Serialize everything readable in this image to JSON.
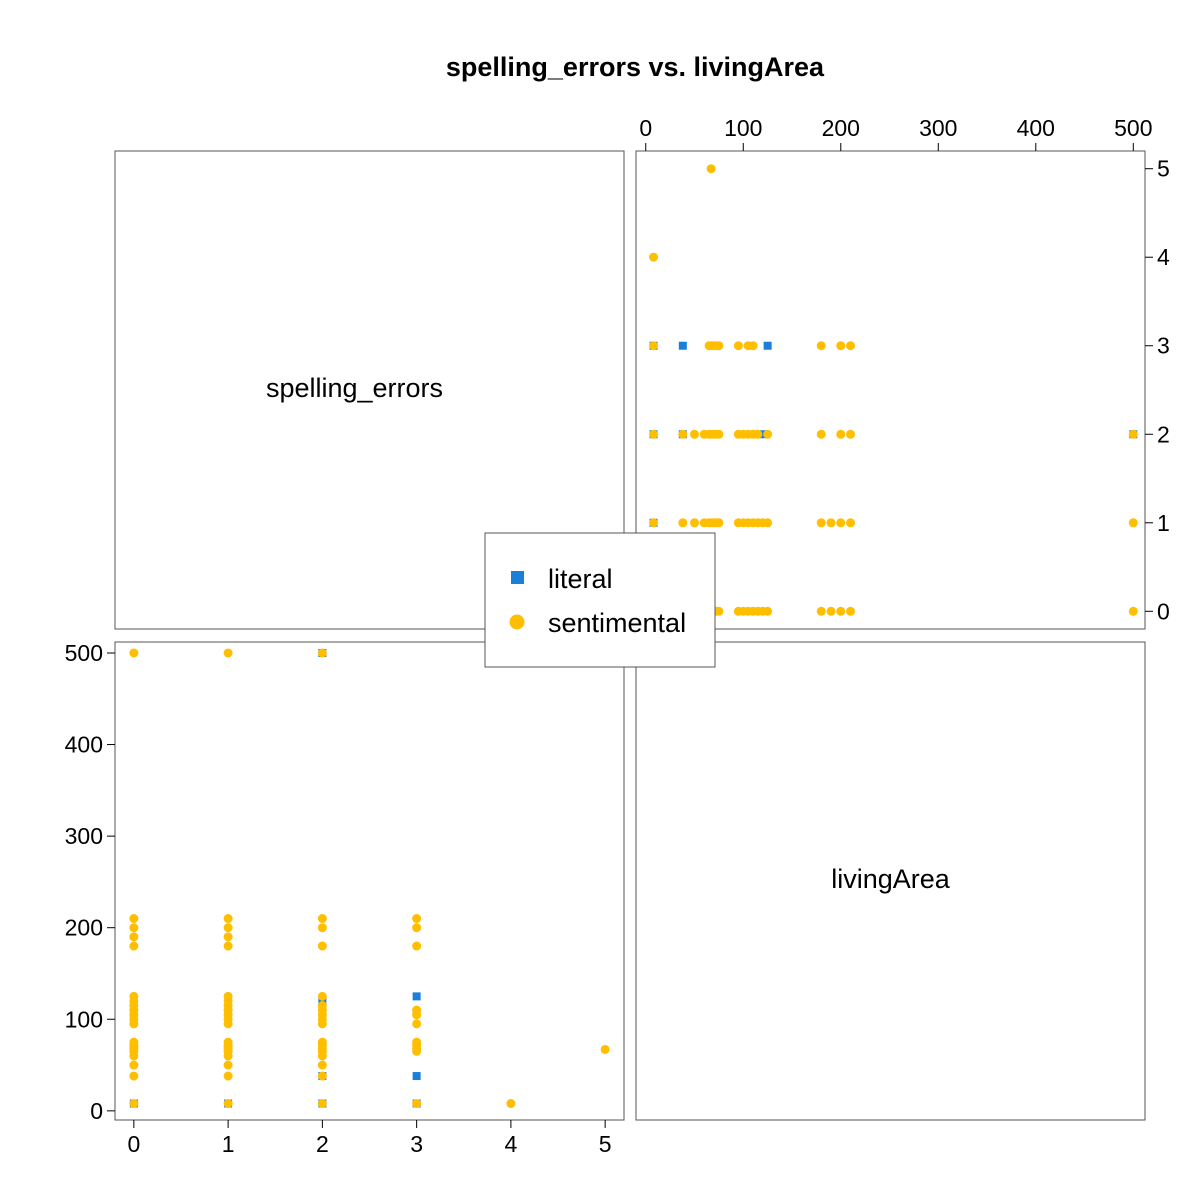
{
  "chart_data": {
    "type": "scatter",
    "title": "spelling_errors vs. livingArea",
    "variables": [
      "spelling_errors",
      "livingArea"
    ],
    "legend": {
      "placement": "center",
      "entries": [
        {
          "label": "literal",
          "color": "#1a7fd6",
          "marker": "square"
        },
        {
          "label": "sentimental",
          "color": "#ffbf00",
          "marker": "circle"
        }
      ]
    },
    "axes": {
      "spelling_errors": {
        "range": [
          -0.2,
          5.2
        ],
        "ticks": [
          0,
          1,
          2,
          3,
          4,
          5
        ],
        "tick_labels": [
          "0",
          "1",
          "2",
          "3",
          "4",
          "5"
        ]
      },
      "livingArea": {
        "range": [
          -10,
          512
        ],
        "ticks": [
          0,
          100,
          200,
          300,
          400,
          500
        ],
        "tick_labels": [
          "0",
          "100",
          "200",
          "300",
          "400",
          "500"
        ]
      }
    },
    "series": [
      {
        "name": "literal",
        "points": [
          {
            "spelling_errors": 3,
            "livingArea": 125
          },
          {
            "spelling_errors": 3,
            "livingArea": 38
          },
          {
            "spelling_errors": 3,
            "livingArea": 8
          },
          {
            "spelling_errors": 3,
            "livingArea": 70
          },
          {
            "spelling_errors": 2,
            "livingArea": 120
          },
          {
            "spelling_errors": 2,
            "livingArea": 8
          },
          {
            "spelling_errors": 2,
            "livingArea": 500
          },
          {
            "spelling_errors": 2,
            "livingArea": 38
          },
          {
            "spelling_errors": 1,
            "livingArea": 8
          },
          {
            "spelling_errors": 0,
            "livingArea": 8
          }
        ]
      },
      {
        "name": "sentimental",
        "points": [
          {
            "spelling_errors": 5,
            "livingArea": 67
          },
          {
            "spelling_errors": 4,
            "livingArea": 8
          },
          {
            "spelling_errors": 3,
            "livingArea": 8
          },
          {
            "spelling_errors": 3,
            "livingArea": 65
          },
          {
            "spelling_errors": 3,
            "livingArea": 68
          },
          {
            "spelling_errors": 3,
            "livingArea": 72
          },
          {
            "spelling_errors": 3,
            "livingArea": 75
          },
          {
            "spelling_errors": 3,
            "livingArea": 95
          },
          {
            "spelling_errors": 3,
            "livingArea": 105
          },
          {
            "spelling_errors": 3,
            "livingArea": 110
          },
          {
            "spelling_errors": 3,
            "livingArea": 180
          },
          {
            "spelling_errors": 3,
            "livingArea": 200
          },
          {
            "spelling_errors": 3,
            "livingArea": 210
          },
          {
            "spelling_errors": 2,
            "livingArea": 8
          },
          {
            "spelling_errors": 2,
            "livingArea": 38
          },
          {
            "spelling_errors": 2,
            "livingArea": 50
          },
          {
            "spelling_errors": 2,
            "livingArea": 60
          },
          {
            "spelling_errors": 2,
            "livingArea": 65
          },
          {
            "spelling_errors": 2,
            "livingArea": 68
          },
          {
            "spelling_errors": 2,
            "livingArea": 72
          },
          {
            "spelling_errors": 2,
            "livingArea": 75
          },
          {
            "spelling_errors": 2,
            "livingArea": 95
          },
          {
            "spelling_errors": 2,
            "livingArea": 100
          },
          {
            "spelling_errors": 2,
            "livingArea": 105
          },
          {
            "spelling_errors": 2,
            "livingArea": 110
          },
          {
            "spelling_errors": 2,
            "livingArea": 115
          },
          {
            "spelling_errors": 2,
            "livingArea": 125
          },
          {
            "spelling_errors": 2,
            "livingArea": 180
          },
          {
            "spelling_errors": 2,
            "livingArea": 200
          },
          {
            "spelling_errors": 2,
            "livingArea": 210
          },
          {
            "spelling_errors": 2,
            "livingArea": 500
          },
          {
            "spelling_errors": 1,
            "livingArea": 8
          },
          {
            "spelling_errors": 1,
            "livingArea": 38
          },
          {
            "spelling_errors": 1,
            "livingArea": 50
          },
          {
            "spelling_errors": 1,
            "livingArea": 60
          },
          {
            "spelling_errors": 1,
            "livingArea": 65
          },
          {
            "spelling_errors": 1,
            "livingArea": 68
          },
          {
            "spelling_errors": 1,
            "livingArea": 70
          },
          {
            "spelling_errors": 1,
            "livingArea": 72
          },
          {
            "spelling_errors": 1,
            "livingArea": 75
          },
          {
            "spelling_errors": 1,
            "livingArea": 95
          },
          {
            "spelling_errors": 1,
            "livingArea": 100
          },
          {
            "spelling_errors": 1,
            "livingArea": 105
          },
          {
            "spelling_errors": 1,
            "livingArea": 110
          },
          {
            "spelling_errors": 1,
            "livingArea": 115
          },
          {
            "spelling_errors": 1,
            "livingArea": 120
          },
          {
            "spelling_errors": 1,
            "livingArea": 125
          },
          {
            "spelling_errors": 1,
            "livingArea": 180
          },
          {
            "spelling_errors": 1,
            "livingArea": 190
          },
          {
            "spelling_errors": 1,
            "livingArea": 200
          },
          {
            "spelling_errors": 1,
            "livingArea": 210
          },
          {
            "spelling_errors": 1,
            "livingArea": 500
          },
          {
            "spelling_errors": 0,
            "livingArea": 8
          },
          {
            "spelling_errors": 0,
            "livingArea": 38
          },
          {
            "spelling_errors": 0,
            "livingArea": 50
          },
          {
            "spelling_errors": 0,
            "livingArea": 60
          },
          {
            "spelling_errors": 0,
            "livingArea": 65
          },
          {
            "spelling_errors": 0,
            "livingArea": 68
          },
          {
            "spelling_errors": 0,
            "livingArea": 70
          },
          {
            "spelling_errors": 0,
            "livingArea": 72
          },
          {
            "spelling_errors": 0,
            "livingArea": 75
          },
          {
            "spelling_errors": 0,
            "livingArea": 95
          },
          {
            "spelling_errors": 0,
            "livingArea": 100
          },
          {
            "spelling_errors": 0,
            "livingArea": 105
          },
          {
            "spelling_errors": 0,
            "livingArea": 110
          },
          {
            "spelling_errors": 0,
            "livingArea": 115
          },
          {
            "spelling_errors": 0,
            "livingArea": 120
          },
          {
            "spelling_errors": 0,
            "livingArea": 125
          },
          {
            "spelling_errors": 0,
            "livingArea": 180
          },
          {
            "spelling_errors": 0,
            "livingArea": 190
          },
          {
            "spelling_errors": 0,
            "livingArea": 200
          },
          {
            "spelling_errors": 0,
            "livingArea": 210
          },
          {
            "spelling_errors": 0,
            "livingArea": 500
          }
        ]
      }
    ]
  }
}
